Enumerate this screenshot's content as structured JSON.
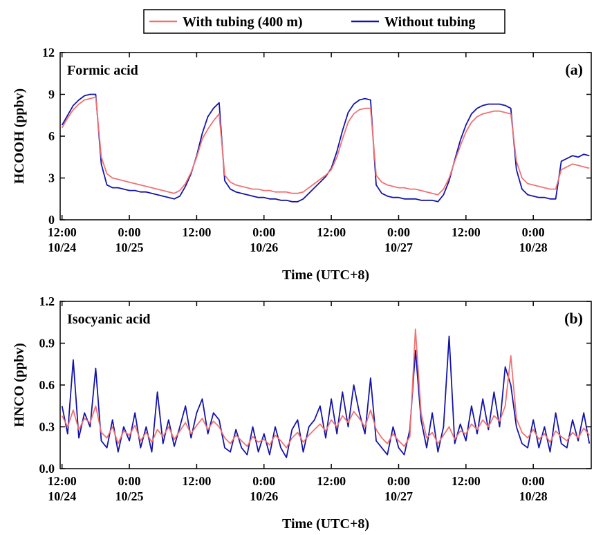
{
  "legend_position": "top center",
  "chart_data": [
    {
      "type": "line",
      "annotation": "Formic acid",
      "panel_label": "(a)",
      "xlabel": "Time (UTC+8)",
      "ylabel": "HCOOH (ppbv)",
      "x": [
        "10/24 12:00",
        "10/24 13:00",
        "10/24 14:00",
        "10/24 15:00",
        "10/24 16:00",
        "10/24 17:00",
        "10/24 18:00",
        "10/24 19:00",
        "10/24 20:00",
        "10/24 21:00",
        "10/24 22:00",
        "10/24 23:00",
        "10/25 00:00",
        "10/25 01:00",
        "10/25 02:00",
        "10/25 03:00",
        "10/25 04:00",
        "10/25 05:00",
        "10/25 06:00",
        "10/25 07:00",
        "10/25 08:00",
        "10/25 09:00",
        "10/25 10:00",
        "10/25 11:00",
        "10/25 12:00",
        "10/25 13:00",
        "10/25 14:00",
        "10/25 15:00",
        "10/25 16:00",
        "10/25 17:00",
        "10/25 18:00",
        "10/25 19:00",
        "10/25 20:00",
        "10/25 21:00",
        "10/25 22:00",
        "10/25 23:00",
        "10/26 00:00",
        "10/26 01:00",
        "10/26 02:00",
        "10/26 03:00",
        "10/26 04:00",
        "10/26 05:00",
        "10/26 06:00",
        "10/26 07:00",
        "10/26 08:00",
        "10/26 09:00",
        "10/26 10:00",
        "10/26 11:00",
        "10/26 12:00",
        "10/26 13:00",
        "10/26 14:00",
        "10/26 15:00",
        "10/26 16:00",
        "10/26 17:00",
        "10/26 18:00",
        "10/26 19:00",
        "10/26 20:00",
        "10/26 21:00",
        "10/26 22:00",
        "10/26 23:00",
        "10/27 00:00",
        "10/27 01:00",
        "10/27 02:00",
        "10/27 03:00",
        "10/27 04:00",
        "10/27 05:00",
        "10/27 06:00",
        "10/27 07:00",
        "10/27 08:00",
        "10/27 09:00",
        "10/27 10:00",
        "10/27 11:00",
        "10/27 12:00",
        "10/27 13:00",
        "10/27 14:00",
        "10/27 15:00",
        "10/27 16:00",
        "10/27 17:00",
        "10/27 18:00",
        "10/27 19:00",
        "10/27 20:00",
        "10/27 21:00",
        "10/27 22:00",
        "10/27 23:00",
        "10/28 00:00",
        "10/28 01:00",
        "10/28 02:00",
        "10/28 03:00",
        "10/28 04:00",
        "10/28 05:00",
        "10/28 06:00",
        "10/28 07:00",
        "10/28 08:00",
        "10/28 09:00",
        "10/28 10:00"
      ],
      "series": [
        {
          "name": "With tubing (400 m)",
          "color": "#f07272",
          "values": [
            6.6,
            7.3,
            7.9,
            8.3,
            8.6,
            8.7,
            8.8,
            4.5,
            3.3,
            3.0,
            2.9,
            2.8,
            2.7,
            2.6,
            2.5,
            2.4,
            2.3,
            2.2,
            2.1,
            2.0,
            1.9,
            2.1,
            2.6,
            3.4,
            4.5,
            5.8,
            6.5,
            7.1,
            7.6,
            3.2,
            2.7,
            2.5,
            2.4,
            2.3,
            2.2,
            2.2,
            2.1,
            2.1,
            2.0,
            2.0,
            2.0,
            1.9,
            1.9,
            2.0,
            2.3,
            2.6,
            2.9,
            3.2,
            3.6,
            4.5,
            5.8,
            7.0,
            7.6,
            7.9,
            8.0,
            8.0,
            3.2,
            2.7,
            2.5,
            2.4,
            2.3,
            2.3,
            2.2,
            2.2,
            2.1,
            2.0,
            1.9,
            1.8,
            2.2,
            3.0,
            4.2,
            5.3,
            6.3,
            7.0,
            7.4,
            7.6,
            7.7,
            7.8,
            7.8,
            7.7,
            7.6,
            4.2,
            3.0,
            2.6,
            2.5,
            2.4,
            2.3,
            2.2,
            2.2,
            3.6,
            3.8,
            4.0,
            3.9,
            3.8,
            3.7
          ]
        },
        {
          "name": "Without tubing",
          "color": "#1414a8",
          "values": [
            6.8,
            7.5,
            8.2,
            8.6,
            8.9,
            9.0,
            9.0,
            4.0,
            2.5,
            2.3,
            2.3,
            2.2,
            2.1,
            2.1,
            2.0,
            2.0,
            1.9,
            1.8,
            1.7,
            1.6,
            1.5,
            1.7,
            2.4,
            3.3,
            4.6,
            6.2,
            7.4,
            8.0,
            8.4,
            2.8,
            2.2,
            2.0,
            1.9,
            1.8,
            1.7,
            1.6,
            1.6,
            1.5,
            1.5,
            1.4,
            1.4,
            1.3,
            1.3,
            1.5,
            1.9,
            2.3,
            2.7,
            3.1,
            3.7,
            4.9,
            6.4,
            7.7,
            8.3,
            8.6,
            8.7,
            8.6,
            2.5,
            1.9,
            1.7,
            1.6,
            1.6,
            1.5,
            1.5,
            1.5,
            1.4,
            1.4,
            1.4,
            1.3,
            1.8,
            2.8,
            4.3,
            5.7,
            6.8,
            7.6,
            8.0,
            8.2,
            8.3,
            8.3,
            8.3,
            8.2,
            8.0,
            3.6,
            2.2,
            1.8,
            1.7,
            1.6,
            1.6,
            1.5,
            1.5,
            4.2,
            4.4,
            4.6,
            4.5,
            4.7,
            4.6
          ]
        }
      ],
      "xlim": [
        "10/24 11:40",
        "10/28 10:20"
      ],
      "xticks": [
        {
          "value": "10/24 12:00",
          "label": "12:00 10/24"
        },
        {
          "value": "10/25 00:00",
          "label": "0:00 10/25"
        },
        {
          "value": "10/25 12:00",
          "label": "12:00"
        },
        {
          "value": "10/26 00:00",
          "label": "0:00 10/26"
        },
        {
          "value": "10/26 12:00",
          "label": "12:00"
        },
        {
          "value": "10/27 00:00",
          "label": "0:00 10/27"
        },
        {
          "value": "10/27 12:00",
          "label": "12:00"
        },
        {
          "value": "10/28 00:00",
          "label": "0:00 10/28"
        }
      ],
      "ylim": [
        0,
        12
      ],
      "yticks": [
        0,
        3,
        6,
        9,
        12
      ]
    },
    {
      "type": "line",
      "annotation": "Isocyanic acid",
      "panel_label": "(b)",
      "xlabel": "Time (UTC+8)",
      "ylabel": "HNCO (ppbv)",
      "x": [
        "10/24 12:00",
        "10/24 13:00",
        "10/24 14:00",
        "10/24 15:00",
        "10/24 16:00",
        "10/24 17:00",
        "10/24 18:00",
        "10/24 19:00",
        "10/24 20:00",
        "10/24 21:00",
        "10/24 22:00",
        "10/24 23:00",
        "10/25 00:00",
        "10/25 01:00",
        "10/25 02:00",
        "10/25 03:00",
        "10/25 04:00",
        "10/25 05:00",
        "10/25 06:00",
        "10/25 07:00",
        "10/25 08:00",
        "10/25 09:00",
        "10/25 10:00",
        "10/25 11:00",
        "10/25 12:00",
        "10/25 13:00",
        "10/25 14:00",
        "10/25 15:00",
        "10/25 16:00",
        "10/25 17:00",
        "10/25 18:00",
        "10/25 19:00",
        "10/25 20:00",
        "10/25 21:00",
        "10/25 22:00",
        "10/25 23:00",
        "10/26 00:00",
        "10/26 01:00",
        "10/26 02:00",
        "10/26 03:00",
        "10/26 04:00",
        "10/26 05:00",
        "10/26 06:00",
        "10/26 07:00",
        "10/26 08:00",
        "10/26 09:00",
        "10/26 10:00",
        "10/26 11:00",
        "10/26 12:00",
        "10/26 13:00",
        "10/26 14:00",
        "10/26 15:00",
        "10/26 16:00",
        "10/26 17:00",
        "10/26 18:00",
        "10/26 19:00",
        "10/26 20:00",
        "10/26 21:00",
        "10/26 22:00",
        "10/26 23:00",
        "10/27 00:00",
        "10/27 01:00",
        "10/27 02:00",
        "10/27 03:00",
        "10/27 04:00",
        "10/27 05:00",
        "10/27 06:00",
        "10/27 07:00",
        "10/27 08:00",
        "10/27 09:00",
        "10/27 10:00",
        "10/27 11:00",
        "10/27 12:00",
        "10/27 13:00",
        "10/27 14:00",
        "10/27 15:00",
        "10/27 16:00",
        "10/27 17:00",
        "10/27 18:00",
        "10/27 19:00",
        "10/27 20:00",
        "10/27 21:00",
        "10/27 22:00",
        "10/27 23:00",
        "10/28 00:00",
        "10/28 01:00",
        "10/28 02:00",
        "10/28 03:00",
        "10/28 04:00",
        "10/28 05:00",
        "10/28 06:00",
        "10/28 07:00",
        "10/28 08:00",
        "10/28 09:00",
        "10/28 10:00"
      ],
      "series": [
        {
          "name": "With tubing (400 m)",
          "color": "#f07272",
          "values": [
            0.38,
            0.3,
            0.42,
            0.28,
            0.36,
            0.33,
            0.45,
            0.26,
            0.22,
            0.3,
            0.18,
            0.27,
            0.24,
            0.31,
            0.2,
            0.26,
            0.19,
            0.28,
            0.23,
            0.3,
            0.21,
            0.27,
            0.33,
            0.25,
            0.31,
            0.36,
            0.28,
            0.34,
            0.3,
            0.22,
            0.18,
            0.24,
            0.2,
            0.16,
            0.23,
            0.19,
            0.21,
            0.17,
            0.24,
            0.2,
            0.15,
            0.22,
            0.26,
            0.19,
            0.24,
            0.28,
            0.32,
            0.27,
            0.35,
            0.3,
            0.38,
            0.33,
            0.41,
            0.36,
            0.3,
            0.42,
            0.28,
            0.22,
            0.18,
            0.25,
            0.2,
            0.16,
            0.23,
            1.0,
            0.4,
            0.22,
            0.26,
            0.18,
            0.24,
            0.3,
            0.21,
            0.27,
            0.25,
            0.32,
            0.28,
            0.35,
            0.3,
            0.38,
            0.34,
            0.45,
            0.81,
            0.36,
            0.26,
            0.22,
            0.28,
            0.21,
            0.25,
            0.19,
            0.27,
            0.23,
            0.2,
            0.26,
            0.22,
            0.29,
            0.24
          ]
        },
        {
          "name": "Without tubing",
          "color": "#1414a8",
          "values": [
            0.45,
            0.25,
            0.78,
            0.22,
            0.4,
            0.3,
            0.72,
            0.2,
            0.15,
            0.35,
            0.12,
            0.3,
            0.2,
            0.4,
            0.15,
            0.3,
            0.12,
            0.55,
            0.18,
            0.35,
            0.16,
            0.3,
            0.45,
            0.22,
            0.4,
            0.5,
            0.25,
            0.4,
            0.35,
            0.15,
            0.12,
            0.28,
            0.15,
            0.1,
            0.3,
            0.12,
            0.25,
            0.1,
            0.3,
            0.15,
            0.08,
            0.28,
            0.35,
            0.12,
            0.3,
            0.35,
            0.45,
            0.22,
            0.5,
            0.25,
            0.55,
            0.3,
            0.6,
            0.4,
            0.25,
            0.65,
            0.2,
            0.15,
            0.1,
            0.3,
            0.15,
            0.1,
            0.28,
            0.85,
            0.35,
            0.15,
            0.4,
            0.12,
            0.3,
            0.95,
            0.18,
            0.32,
            0.2,
            0.45,
            0.25,
            0.5,
            0.28,
            0.55,
            0.3,
            0.73,
            0.6,
            0.3,
            0.18,
            0.15,
            0.35,
            0.15,
            0.3,
            0.12,
            0.4,
            0.18,
            0.15,
            0.35,
            0.2,
            0.4,
            0.18
          ]
        }
      ],
      "xlim": [
        "10/24 11:40",
        "10/28 10:20"
      ],
      "xticks": [
        {
          "value": "10/24 12:00",
          "label": "12:00 10/24"
        },
        {
          "value": "10/25 00:00",
          "label": "0:00 10/25"
        },
        {
          "value": "10/25 12:00",
          "label": "12:00"
        },
        {
          "value": "10/26 00:00",
          "label": "0:00 10/26"
        },
        {
          "value": "10/26 12:00",
          "label": "12:00"
        },
        {
          "value": "10/27 00:00",
          "label": "0:00 10/27"
        },
        {
          "value": "10/27 12:00",
          "label": "12:00"
        },
        {
          "value": "10/28 00:00",
          "label": "0:00 10/28"
        }
      ],
      "ylim": [
        0,
        1.2
      ],
      "yticks": [
        {
          "value": 0,
          "label": "0.0"
        },
        0.3,
        0.6,
        0.9,
        1.2
      ]
    }
  ]
}
